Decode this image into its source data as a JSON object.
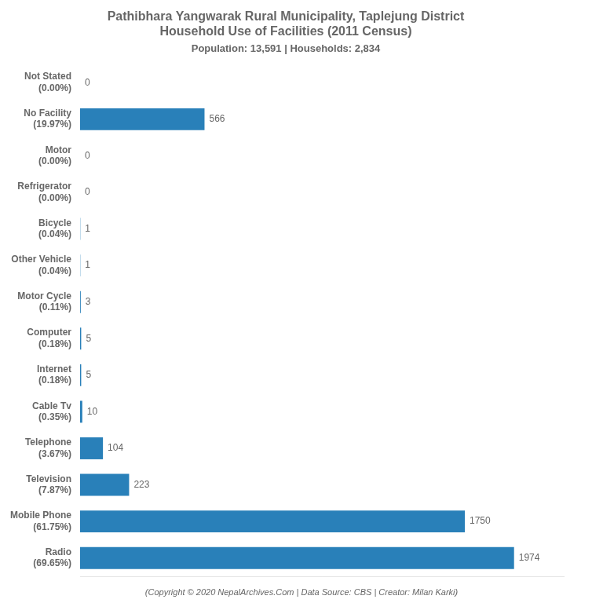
{
  "chart_data": {
    "type": "bar",
    "orientation": "horizontal",
    "title": [
      "Pathibhara Yangwarak Rural Municipality, Taplejung District",
      "Household Use of Facilities (2011 Census)"
    ],
    "subtitle": "Population: 13,591 | Households: 2,834",
    "annotations": [
      "(Copyright © 2020 NepalArchives.Com | Data Source: CBS | Creator: Milan Karki)"
    ],
    "categories": [
      "Not Stated\n(0.00%)",
      "No Facility\n(19.97%)",
      "Motor\n(0.00%)",
      "Refrigerator\n(0.00%)",
      "Bicycle\n(0.04%)",
      "Other Vehicle\n(0.04%)",
      "Motor Cycle\n(0.11%)",
      "Computer\n(0.18%)",
      "Internet\n(0.18%)",
      "Cable Tv\n(0.35%)",
      "Telephone\n(3.67%)",
      "Television\n(7.87%)",
      "Mobile Phone\n(61.75%)",
      "Radio\n(69.65%)"
    ],
    "values": [
      0,
      566,
      0,
      0,
      1,
      1,
      3,
      5,
      5,
      10,
      104,
      223,
      1750,
      1974
    ],
    "color": "#2980B9",
    "xlim": [
      0,
      2200
    ],
    "grid": false,
    "data_labels": true,
    "tick_labels": "y"
  }
}
